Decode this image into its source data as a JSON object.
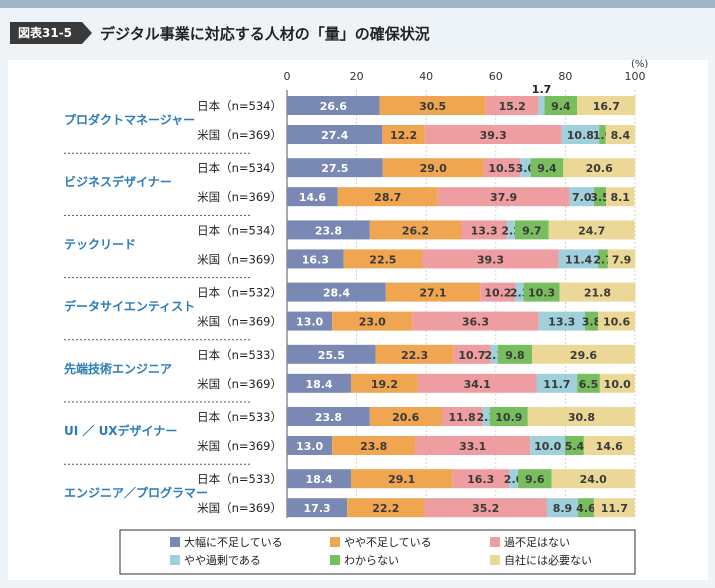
{
  "header": {
    "tag": "図表31-5",
    "title": "デジタル事業に対応する人材の「量」の確保状況"
  },
  "chart_data": {
    "type": "bar",
    "orientation": "horizontal",
    "stacked": true,
    "xlim": [
      0,
      100
    ],
    "xticks": [
      "0",
      "20",
      "40",
      "60",
      "80",
      "100"
    ],
    "unit": "(%)",
    "legend_position": "bottom",
    "series": [
      {
        "name": "大幅に不足している",
        "color": "#7a89b4"
      },
      {
        "name": "やや不足している",
        "color": "#f0a550"
      },
      {
        "name": "過不足はない",
        "color": "#ee9da0"
      },
      {
        "name": "やや過剰である",
        "color": "#9fd0dc"
      },
      {
        "name": "わからない",
        "color": "#78bd5e"
      },
      {
        "name": "自社には必要ない",
        "color": "#ecd896"
      }
    ],
    "groups": [
      {
        "name": "プロダクトマネージャー",
        "rows": [
          {
            "label": "日本（n=534）",
            "values": [
              26.6,
              30.5,
              15.2,
              1.7,
              9.4,
              16.7
            ]
          },
          {
            "label": "米国（n=369）",
            "values": [
              27.4,
              12.2,
              39.3,
              10.8,
              1.9,
              8.4
            ]
          }
        ]
      },
      {
        "name": "ビジネスデザイナー",
        "rows": [
          {
            "label": "日本（n=534）",
            "values": [
              27.5,
              29.0,
              10.5,
              3.0,
              9.4,
              20.6
            ]
          },
          {
            "label": "米国（n=369）",
            "values": [
              14.6,
              28.7,
              37.9,
              7.0,
              3.5,
              8.1
            ]
          }
        ]
      },
      {
        "name": "テックリード",
        "rows": [
          {
            "label": "日本（n=534）",
            "values": [
              23.8,
              26.2,
              13.3,
              2.2,
              9.7,
              24.7
            ]
          },
          {
            "label": "米国（n=369）",
            "values": [
              16.3,
              22.5,
              39.3,
              11.4,
              2.7,
              7.9
            ]
          }
        ]
      },
      {
        "name": "データサイエンティスト",
        "rows": [
          {
            "label": "日本（n=532）",
            "values": [
              28.4,
              27.1,
              10.2,
              2.3,
              10.3,
              21.8
            ]
          },
          {
            "label": "米国（n=369）",
            "values": [
              13.0,
              23.0,
              36.3,
              13.3,
              3.8,
              10.6
            ]
          }
        ]
      },
      {
        "name": "先端技術エンジニア",
        "rows": [
          {
            "label": "日本（n=533）",
            "values": [
              25.5,
              22.3,
              10.7,
              2.1,
              9.8,
              29.6
            ]
          },
          {
            "label": "米国（n=369）",
            "values": [
              18.4,
              19.2,
              34.1,
              11.7,
              6.5,
              10.0
            ]
          }
        ]
      },
      {
        "name": "UI ／ UXデザイナー",
        "rows": [
          {
            "label": "日本（n=533）",
            "values": [
              23.8,
              20.6,
              11.8,
              2.1,
              10.9,
              30.8
            ]
          },
          {
            "label": "米国（n=369）",
            "values": [
              13.0,
              23.8,
              33.1,
              10.0,
              5.4,
              14.6
            ]
          }
        ]
      },
      {
        "name": "エンジニア／プログラマー",
        "rows": [
          {
            "label": "日本（n=533）",
            "values": [
              18.4,
              29.1,
              16.3,
              2.6,
              9.6,
              24.0
            ]
          },
          {
            "label": "米国（n=369）",
            "values": [
              17.3,
              22.2,
              35.2,
              8.9,
              4.6,
              11.7
            ]
          }
        ]
      }
    ]
  }
}
